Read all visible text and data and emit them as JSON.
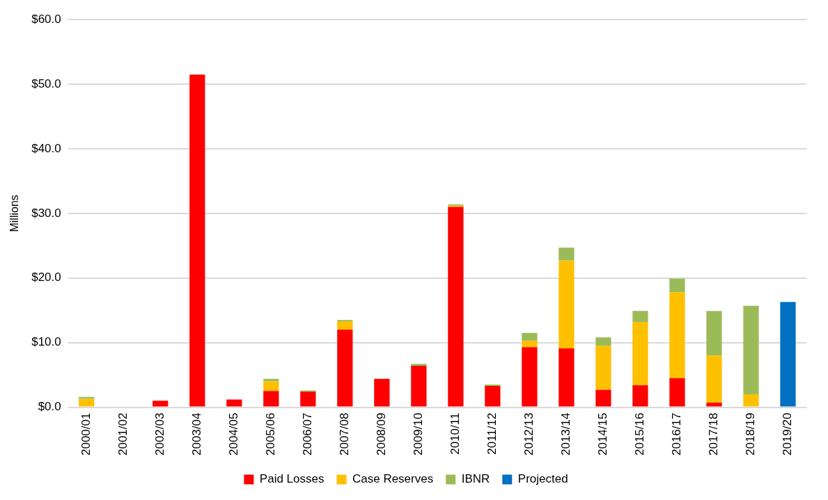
{
  "chart_data": {
    "type": "bar",
    "stacked": true,
    "ylabel": "Millions",
    "categories": [
      "2000/01",
      "2001/02",
      "2002/03",
      "2003/04",
      "2004/05",
      "2005/06",
      "2006/07",
      "2007/08",
      "2008/09",
      "2009/10",
      "2010/11",
      "2011/12",
      "2012/13",
      "2013/14",
      "2014/15",
      "2015/16",
      "2016/17",
      "2017/18",
      "2018/19",
      "2019/20"
    ],
    "series": [
      {
        "name": "Paid Losses",
        "color": "#ff0000",
        "values": [
          null,
          0,
          1.0,
          51.5,
          1.2,
          2.5,
          2.4,
          12.0,
          4.4,
          6.4,
          31.0,
          3.3,
          9.3,
          9.1,
          2.7,
          3.4,
          4.5,
          0.7,
          null,
          null
        ]
      },
      {
        "name": "Case Reserves",
        "color": "#ffc000",
        "values": [
          1.3,
          0,
          0,
          0,
          0,
          1.5,
          0,
          1.3,
          0,
          0,
          0.2,
          0,
          1.0,
          13.6,
          6.8,
          9.8,
          13.3,
          7.3,
          2.0,
          null
        ]
      },
      {
        "name": "IBNR",
        "color": "#9bbb59",
        "values": [
          0.3,
          0,
          0,
          0,
          0,
          0.4,
          0.2,
          0.2,
          0,
          0.3,
          0.2,
          0.2,
          1.2,
          2.0,
          1.3,
          1.7,
          2.1,
          6.9,
          13.7,
          null
        ]
      },
      {
        "name": "Projected",
        "color": "#0070c0",
        "values": [
          null,
          null,
          null,
          null,
          null,
          null,
          null,
          null,
          null,
          null,
          null,
          null,
          null,
          null,
          null,
          null,
          null,
          null,
          null,
          16.3
        ]
      }
    ],
    "ylim": [
      0,
      60
    ],
    "yticks": [
      {
        "value": 0,
        "label": "$0.0"
      },
      {
        "value": 10,
        "label": "$10.0"
      },
      {
        "value": 20,
        "label": "$20.0"
      },
      {
        "value": 30,
        "label": "$30.0"
      },
      {
        "value": 40,
        "label": "$40.0"
      },
      {
        "value": 50,
        "label": "$50.0"
      },
      {
        "value": 60,
        "label": "$60.0"
      }
    ],
    "grid": "y",
    "legend": "bottom"
  }
}
